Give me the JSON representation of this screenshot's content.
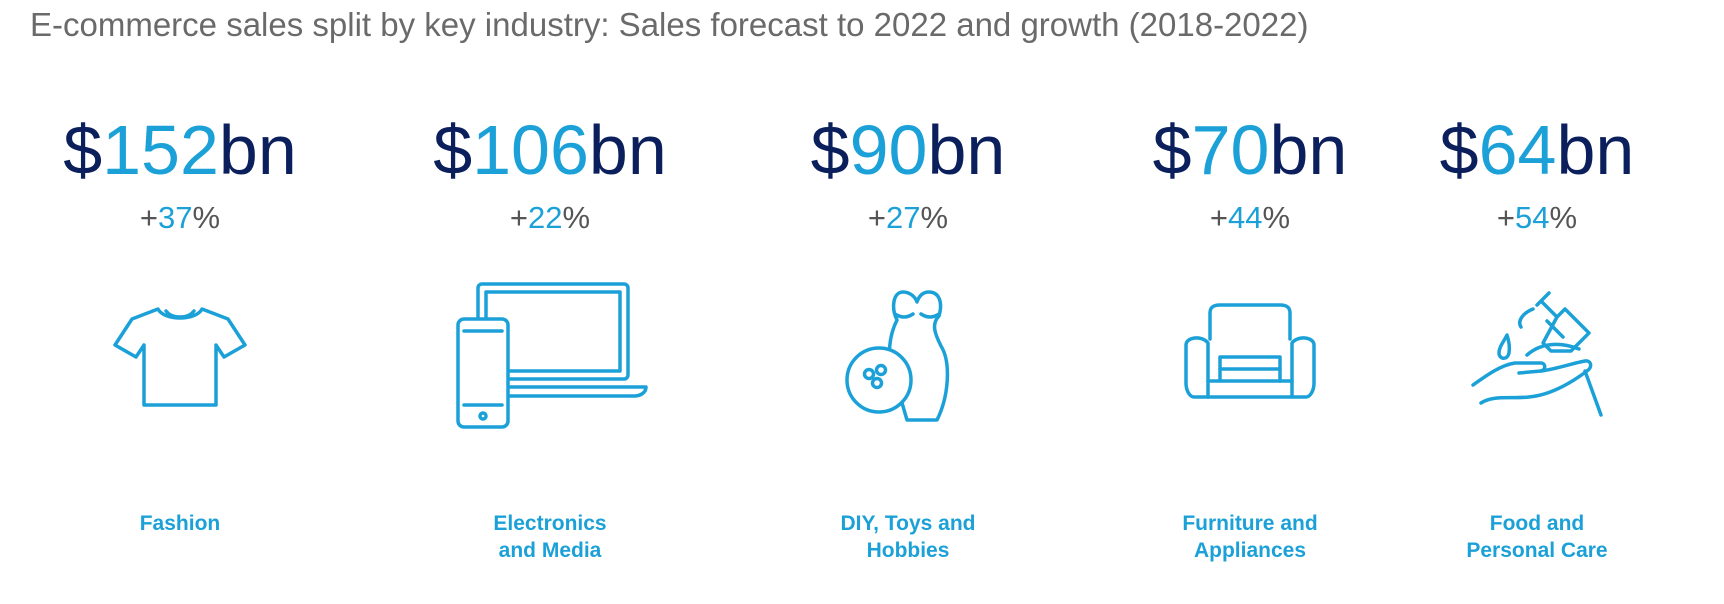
{
  "title": "E-commerce sales split by key industry: Sales forecast to 2022 and growth (2018-2022)",
  "colors": {
    "accent": "#1ba1d8",
    "dark": "#0b1f5c",
    "text": "#555555"
  },
  "chart_data": {
    "type": "table",
    "title": "E-commerce sales split by key industry: Sales forecast to 2022 and growth (2018-2022)",
    "items": [
      {
        "category": "Fashion",
        "sales_prefix": "$",
        "sales": "152",
        "sales_unit": "bn",
        "growth_prefix": "+",
        "growth": "37",
        "growth_unit": "%",
        "icon": "t-shirt-icon"
      },
      {
        "category": "Electronics\nand Media",
        "sales_prefix": "$",
        "sales": "106",
        "sales_unit": "bn",
        "growth_prefix": "+",
        "growth": "22",
        "growth_unit": "%",
        "icon": "laptop-phone-icon"
      },
      {
        "category": "DIY, Toys and\nHobbies",
        "sales_prefix": "$",
        "sales": "90",
        "sales_unit": "bn",
        "growth_prefix": "+",
        "growth": "27",
        "growth_unit": "%",
        "icon": "bowling-icon"
      },
      {
        "category": "Furniture and\nAppliances",
        "sales_prefix": "$",
        "sales": "70",
        "sales_unit": "bn",
        "growth_prefix": "+",
        "growth": "44",
        "growth_unit": "%",
        "icon": "armchair-icon"
      },
      {
        "category": "Food and\nPersonal Care",
        "sales_prefix": "$",
        "sales": "64",
        "sales_unit": "bn",
        "growth_prefix": "+",
        "growth": "54",
        "growth_unit": "%",
        "icon": "hand-soap-icon"
      }
    ]
  }
}
